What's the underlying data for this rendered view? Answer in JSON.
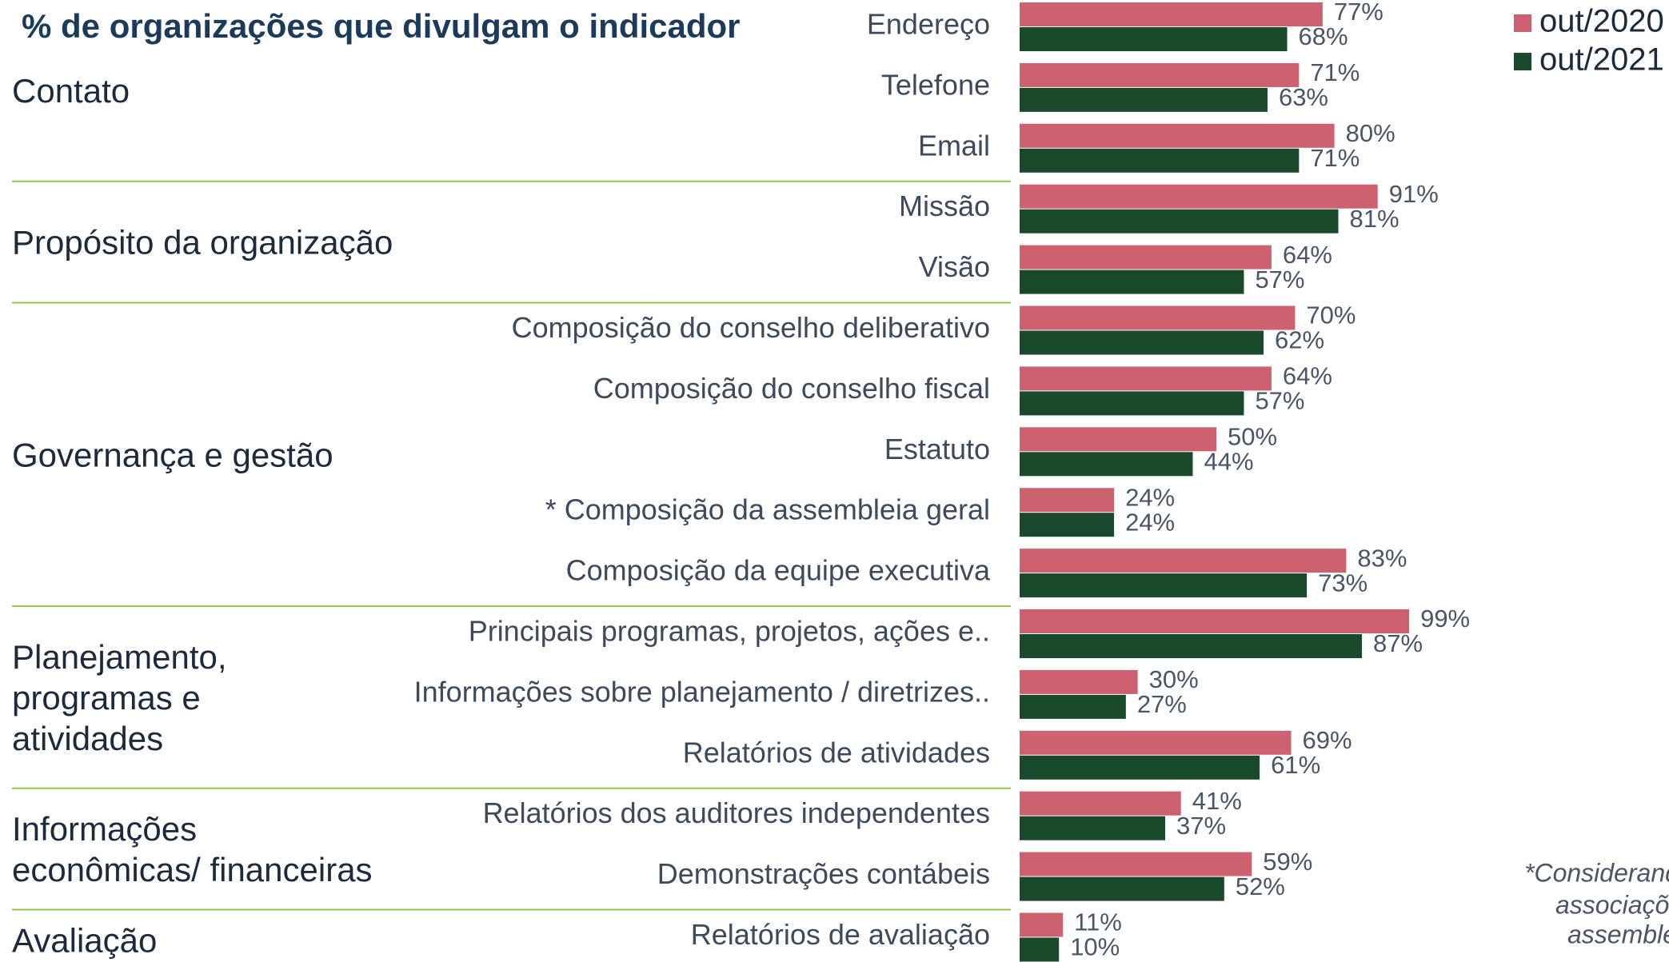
{
  "chart_data": {
    "type": "grouped-hbar",
    "title": "% de organizações que divulgam o indicador",
    "categories": [
      "Endereço",
      "Telefone",
      "Email",
      "Missão",
      "Visão",
      "Composição do conselho deliberativo",
      "Composição do conselho fiscal",
      "Estatuto",
      "* Composição da assembleia geral",
      "Composição da equipe executiva",
      "Principais programas, projetos, ações e..",
      "Informações sobre planejamento / diretrizes..",
      "Relatórios de atividades",
      "Relatórios dos auditores independentes",
      "Demonstrações contábeis",
      "Relatórios de avaliação"
    ],
    "groups": [
      {
        "label": [
          "Contato"
        ],
        "rows": 3
      },
      {
        "label": [
          "Propósito da organização"
        ],
        "rows": 2
      },
      {
        "label": [
          "Governança e gestão"
        ],
        "rows": 5
      },
      {
        "label": [
          "Planejamento,",
          "programas e",
          "atividades"
        ],
        "rows": 3
      },
      {
        "label": [
          "Informações",
          "econômicas/ financeiras"
        ],
        "rows": 2
      },
      {
        "label": [
          "Avaliação"
        ],
        "rows": 1
      }
    ],
    "series": [
      {
        "name": "out/2020",
        "color": "#cd6170",
        "values": [
          77,
          71,
          80,
          91,
          64,
          70,
          64,
          50,
          24,
          83,
          99,
          30,
          69,
          41,
          59,
          11
        ],
        "value_labels": [
          "77%",
          "71%",
          "80%",
          "91%",
          "64%",
          "70%",
          "64%",
          "50%",
          "24%",
          "83%",
          "99%",
          "30%",
          "69%",
          "41%",
          "59%",
          "11%"
        ]
      },
      {
        "name": "out/2021",
        "color": "#1a4a2c",
        "values": [
          68,
          63,
          71,
          81,
          57,
          62,
          57,
          44,
          24,
          73,
          87,
          27,
          61,
          37,
          52,
          10
        ],
        "value_labels": [
          "68%",
          "63%",
          "71%",
          "81%",
          "57%",
          "62%",
          "57%",
          "44%",
          "24%",
          "73%",
          "87%",
          "27%",
          "61%",
          "37%",
          "52%",
          "10%"
        ]
      }
    ],
    "xlim": [
      0,
      100
    ],
    "legend": "top-right",
    "annotation": [
      "*Considerand",
      "associaçõ",
      "assemble"
    ]
  }
}
